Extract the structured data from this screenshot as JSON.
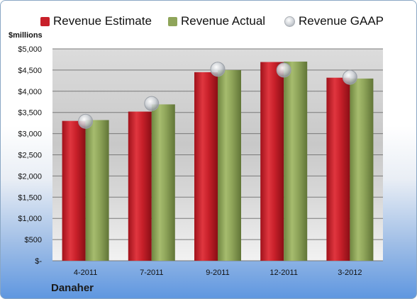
{
  "legend": {
    "estimate": "Revenue Estimate",
    "actual": "Revenue Actual",
    "gaap": "Revenue GAAP"
  },
  "unit_label": "$millions",
  "company": "Danaher",
  "colors": {
    "estimate": "#c8202a",
    "actual": "#8fa55a",
    "gaap": "#c9cdd3"
  },
  "chart_data": {
    "type": "bar",
    "categories": [
      "4-2011",
      "7-2011",
      "9-2011",
      "12-2011",
      "3-2012"
    ],
    "series": [
      {
        "name": "Revenue Estimate",
        "values": [
          3300,
          3520,
          4450,
          4690,
          4320
        ]
      },
      {
        "name": "Revenue Actual",
        "values": [
          3320,
          3690,
          4500,
          4700,
          4300
        ]
      },
      {
        "name": "Revenue GAAP",
        "values": [
          3290,
          3710,
          4520,
          4500,
          4330
        ],
        "marker": "circle"
      }
    ],
    "y_ticks": [
      "$-",
      "$500",
      "$1,000",
      "$1,500",
      "$2,000",
      "$2,500",
      "$3,000",
      "$3,500",
      "$4,000",
      "$4,500",
      "$5,000"
    ],
    "ylim": [
      0,
      5000
    ],
    "ylabel": "$millions",
    "grid": true,
    "legend_position": "top"
  }
}
